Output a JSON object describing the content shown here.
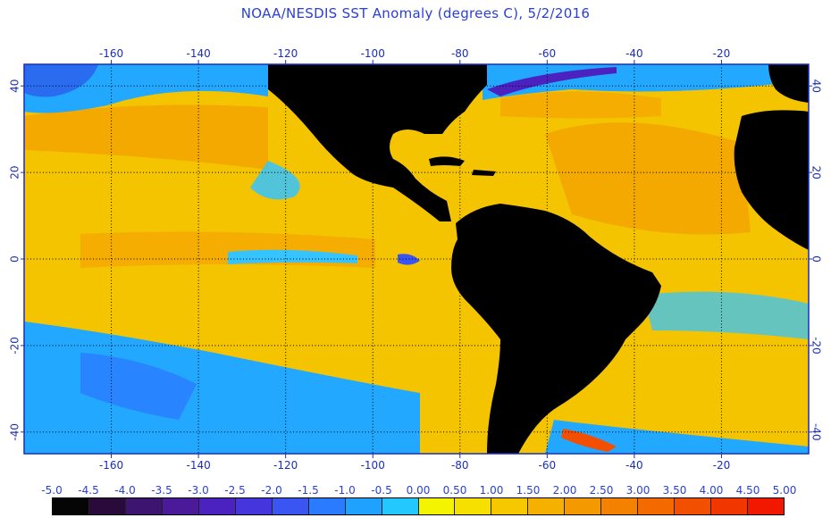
{
  "title": "NOAA/NESDIS SST Anomaly (degrees C), 5/2/2016",
  "map": {
    "lon_range": [
      -180,
      0
    ],
    "lat_range": [
      -45,
      45
    ],
    "lon_ticks": [
      "-160",
      "-140",
      "-120",
      "-100",
      "-80",
      "-60",
      "-40",
      "-20"
    ],
    "lon_tick_values": [
      -160,
      -140,
      -120,
      -100,
      -80,
      -60,
      -40,
      -20
    ],
    "lat_ticks": [
      "40",
      "20",
      "0",
      "-20",
      "-40"
    ],
    "lat_tick_values": [
      40,
      20,
      0,
      -20,
      -40
    ],
    "grid": "dotted",
    "land_color": "#000000",
    "ocean_base_color": "#f5c400"
  },
  "colorbar": {
    "labels": [
      "-5.0",
      "-4.5",
      "-4.0",
      "-3.5",
      "-3.0",
      "-2.5",
      "-2.0",
      "-1.5",
      "-1.0",
      "-0.5",
      "0.00",
      "0.50",
      "1.00",
      "1.50",
      "2.00",
      "2.50",
      "3.00",
      "3.50",
      "4.00",
      "4.50",
      "5.00"
    ],
    "colors": [
      "#050505",
      "#2a0a3a",
      "#3d1470",
      "#4a1a9a",
      "#4b22c0",
      "#4535dc",
      "#3a55f2",
      "#2a7bff",
      "#1fa2ff",
      "#22c8ff",
      "#f4f400",
      "#f6e000",
      "#f6c800",
      "#f6b000",
      "#f49a00",
      "#f48200",
      "#f46a00",
      "#f25000",
      "#f23600",
      "#f21800"
    ]
  }
}
